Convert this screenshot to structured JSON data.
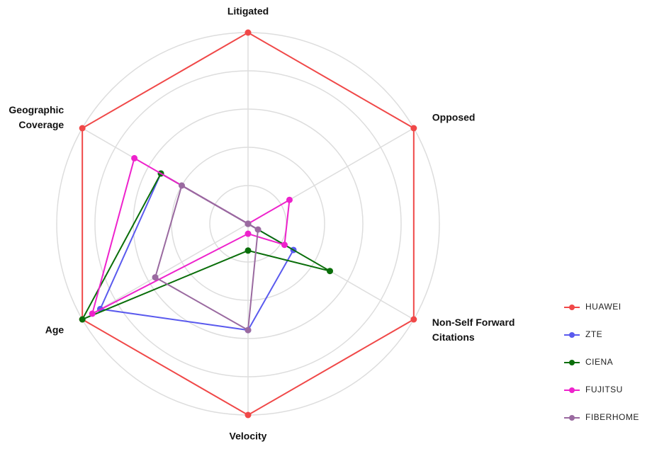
{
  "chart_data": {
    "type": "radar",
    "categories": [
      "Litigated",
      "Opposed",
      "Non-Self Forward Citations",
      "Velocity",
      "Age",
      "Geographic Coverage"
    ],
    "rlim": [
      0,
      5
    ],
    "rticks": [
      1,
      2,
      3,
      4,
      5
    ],
    "grid": true,
    "legend": "right",
    "series": [
      {
        "name": "HUAWEI",
        "color": "#f04848",
        "values": [
          5,
          5,
          5,
          5,
          5,
          5
        ]
      },
      {
        "name": "ZTE",
        "color": "#5a5aee",
        "values": [
          0,
          0,
          1.37,
          2.78,
          4.46,
          2.63
        ]
      },
      {
        "name": "CIENA",
        "color": "#0a6e0a",
        "values": [
          0,
          0,
          2.47,
          0.7,
          5,
          2.63
        ]
      },
      {
        "name": "FUJITSU",
        "color": "#ee22cc",
        "values": [
          0,
          1.25,
          1.1,
          0.26,
          4.7,
          3.43
        ]
      },
      {
        "name": "FIBERHOME",
        "color": "#9a6aa0",
        "values": [
          0,
          0,
          0.3,
          2.78,
          2.8,
          2
        ]
      }
    ]
  }
}
